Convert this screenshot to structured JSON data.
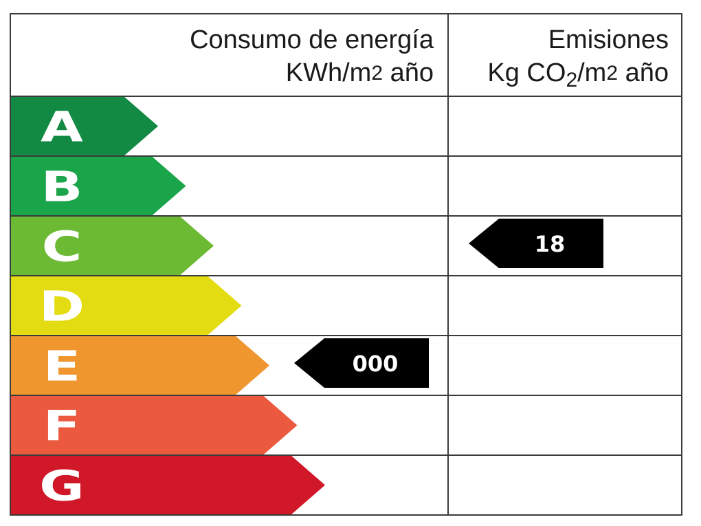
{
  "header": {
    "energy": {
      "line1": "Consumo de energía",
      "unit_prefix": "KWh/m",
      "unit_sup": "2",
      "unit_suffix": " año"
    },
    "emissions": {
      "line1": "Emisiones",
      "unit_prefix": "Kg CO",
      "unit_sub": "2",
      "unit_mid": "/m",
      "unit_sup": "2",
      "unit_suffix": " año"
    }
  },
  "ratings": [
    {
      "letter": "A",
      "color": "#138a44"
    },
    {
      "letter": "B",
      "color": "#1aa54b"
    },
    {
      "letter": "C",
      "color": "#6cb934"
    },
    {
      "letter": "D",
      "color": "#e3dc12"
    },
    {
      "letter": "E",
      "color": "#f0962e"
    },
    {
      "letter": "F",
      "color": "#eb5a3e"
    },
    {
      "letter": "G",
      "color": "#d11829"
    }
  ],
  "indicators": {
    "energy": {
      "value": "000",
      "rating": "E"
    },
    "emissions": {
      "value": "18",
      "rating": "C"
    }
  },
  "colors": {
    "grid": "#3a3a3a",
    "indicator": "#000000",
    "letter": "#ffffff",
    "indicator_text": "#ffffff"
  }
}
